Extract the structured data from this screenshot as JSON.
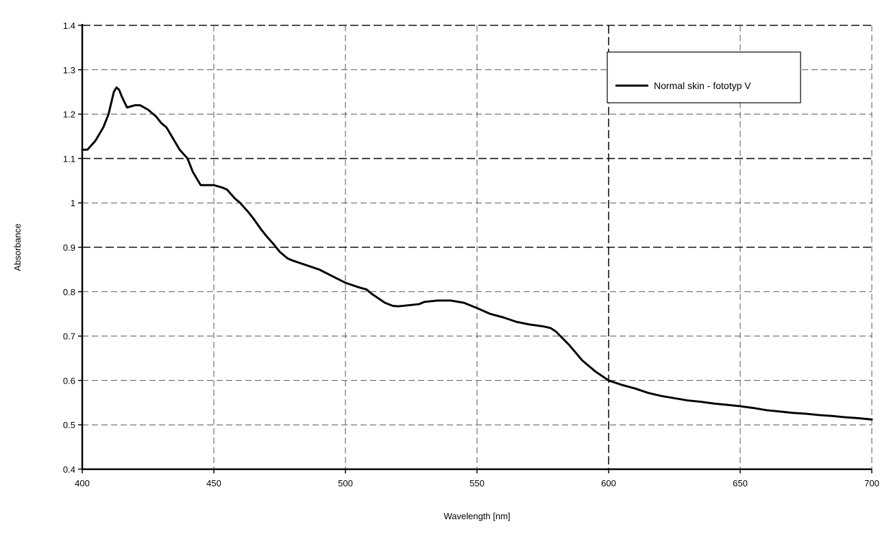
{
  "chart_data": {
    "type": "line",
    "title": "",
    "xlabel": "Wavelength [nm]",
    "ylabel": "Absorbance",
    "xlim": [
      400,
      700
    ],
    "ylim": [
      0.4,
      1.4
    ],
    "x_ticks": [
      400,
      450,
      500,
      550,
      600,
      650,
      700
    ],
    "x_tick_labels": [
      "400",
      "450",
      "500",
      "550",
      "600",
      "650",
      "700"
    ],
    "y_ticks": [
      0.4,
      0.5,
      0.6,
      0.7,
      0.8,
      0.9,
      1.0,
      1.1,
      1.2,
      1.3,
      1.4
    ],
    "y_tick_labels": [
      "0.4",
      "0.5",
      "0.6",
      "0.7",
      "0.8",
      "0.9",
      "1",
      "1.1",
      "1.2",
      "1.3",
      "1.4"
    ],
    "grid": true,
    "legend_position": "top-right",
    "series": [
      {
        "name": "Normal skin - fototyp V",
        "color": "#000000",
        "x": [
          400,
          402,
          405,
          408,
          410,
          412,
          413,
          414,
          415,
          417,
          420,
          422,
          425,
          428,
          430,
          432,
          435,
          437,
          440,
          442,
          445,
          448,
          450,
          453,
          455,
          458,
          460,
          463,
          465,
          468,
          470,
          473,
          475,
          478,
          480,
          485,
          490,
          495,
          500,
          505,
          508,
          510,
          515,
          518,
          520,
          525,
          528,
          530,
          535,
          540,
          545,
          550,
          555,
          560,
          565,
          570,
          575,
          578,
          580,
          585,
          590,
          595,
          600,
          605,
          610,
          615,
          620,
          625,
          630,
          635,
          640,
          645,
          650,
          655,
          660,
          665,
          670,
          675,
          680,
          685,
          690,
          695,
          700
        ],
        "y": [
          1.12,
          1.12,
          1.14,
          1.17,
          1.2,
          1.25,
          1.26,
          1.255,
          1.24,
          1.215,
          1.22,
          1.22,
          1.21,
          1.195,
          1.18,
          1.17,
          1.14,
          1.12,
          1.1,
          1.07,
          1.04,
          1.04,
          1.04,
          1.035,
          1.03,
          1.01,
          1.0,
          0.98,
          0.965,
          0.94,
          0.925,
          0.905,
          0.89,
          0.875,
          0.87,
          0.86,
          0.85,
          0.835,
          0.82,
          0.81,
          0.805,
          0.795,
          0.775,
          0.768,
          0.767,
          0.77,
          0.772,
          0.777,
          0.78,
          0.78,
          0.775,
          0.763,
          0.75,
          0.742,
          0.732,
          0.726,
          0.722,
          0.718,
          0.71,
          0.68,
          0.645,
          0.62,
          0.6,
          0.59,
          0.582,
          0.572,
          0.565,
          0.56,
          0.555,
          0.552,
          0.548,
          0.545,
          0.542,
          0.538,
          0.533,
          0.53,
          0.527,
          0.525,
          0.522,
          0.52,
          0.517,
          0.515,
          0.512
        ]
      }
    ]
  }
}
